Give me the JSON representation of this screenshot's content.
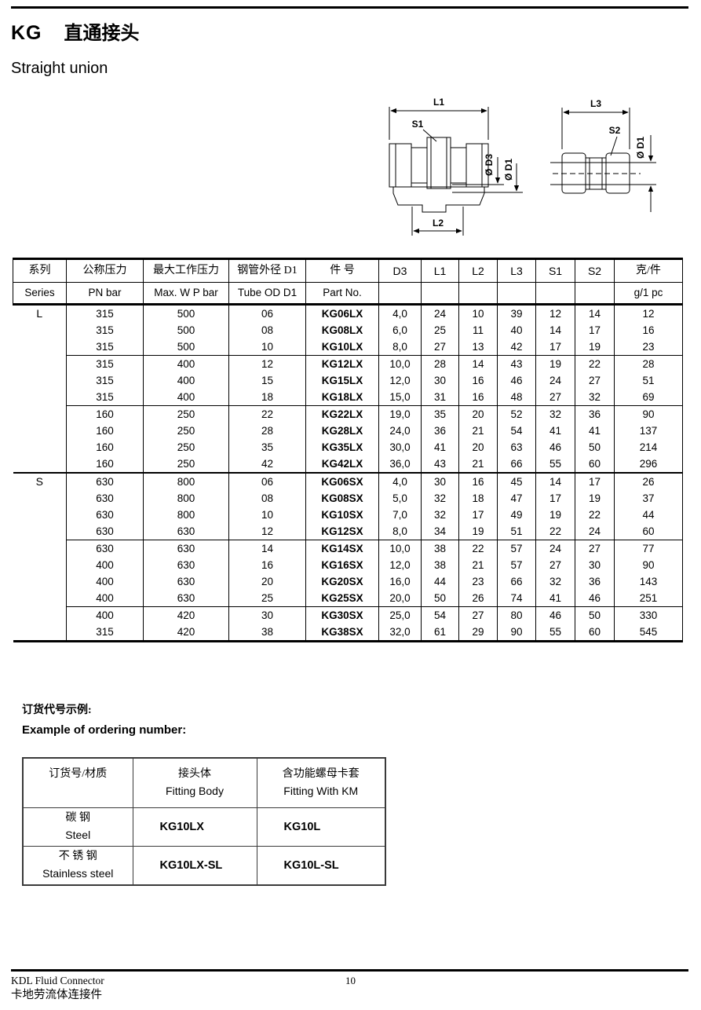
{
  "page": {
    "title_code": "KG",
    "title_zh": "直通接头",
    "subtitle": "Straight union",
    "page_number": "10",
    "footer_line1": "KDL Fluid Connector",
    "footer_line2": "卡地劳流体连接件"
  },
  "diagram": {
    "left": {
      "l1": "L1",
      "s1": "S1",
      "l2": "L2",
      "d3": "Ø D3",
      "d1": "Ø D1"
    },
    "right": {
      "l3": "L3",
      "s2": "S2",
      "d1": "Ø D1"
    }
  },
  "main_table": {
    "headers_zh": [
      "系列",
      "公称压力",
      "最大工作压力",
      "钢管外径 D1",
      "件 号",
      "D3",
      "L1",
      "L2",
      "L3",
      "S1",
      "S2",
      "克/件"
    ],
    "headers_en": [
      "Series",
      "PN bar",
      "Max. W P bar",
      "Tube OD D1",
      "Part No.",
      "",
      "",
      "",
      "",
      "",
      "",
      "g/1 pc"
    ],
    "sections": [
      {
        "series": "L",
        "groups": [
          [
            [
              "315",
              "500",
              "06",
              "KG06LX",
              "4,0",
              "24",
              "10",
              "39",
              "12",
              "14",
              "12"
            ],
            [
              "315",
              "500",
              "08",
              "KG08LX",
              "6,0",
              "25",
              "11",
              "40",
              "14",
              "17",
              "16"
            ],
            [
              "315",
              "500",
              "10",
              "KG10LX",
              "8,0",
              "27",
              "13",
              "42",
              "17",
              "19",
              "23"
            ]
          ],
          [
            [
              "315",
              "400",
              "12",
              "KG12LX",
              "10,0",
              "28",
              "14",
              "43",
              "19",
              "22",
              "28"
            ],
            [
              "315",
              "400",
              "15",
              "KG15LX",
              "12,0",
              "30",
              "16",
              "46",
              "24",
              "27",
              "51"
            ],
            [
              "315",
              "400",
              "18",
              "KG18LX",
              "15,0",
              "31",
              "16",
              "48",
              "27",
              "32",
              "69"
            ]
          ],
          [
            [
              "160",
              "250",
              "22",
              "KG22LX",
              "19,0",
              "35",
              "20",
              "52",
              "32",
              "36",
              "90"
            ],
            [
              "160",
              "250",
              "28",
              "KG28LX",
              "24,0",
              "36",
              "21",
              "54",
              "41",
              "41",
              "137"
            ],
            [
              "160",
              "250",
              "35",
              "KG35LX",
              "30,0",
              "41",
              "20",
              "63",
              "46",
              "50",
              "214"
            ],
            [
              "160",
              "250",
              "42",
              "KG42LX",
              "36,0",
              "43",
              "21",
              "66",
              "55",
              "60",
              "296"
            ]
          ]
        ]
      },
      {
        "series": "S",
        "groups": [
          [
            [
              "630",
              "800",
              "06",
              "KG06SX",
              "4,0",
              "30",
              "16",
              "45",
              "14",
              "17",
              "26"
            ],
            [
              "630",
              "800",
              "08",
              "KG08SX",
              "5,0",
              "32",
              "18",
              "47",
              "17",
              "19",
              "37"
            ],
            [
              "630",
              "800",
              "10",
              "KG10SX",
              "7,0",
              "32",
              "17",
              "49",
              "19",
              "22",
              "44"
            ],
            [
              "630",
              "630",
              "12",
              "KG12SX",
              "8,0",
              "34",
              "19",
              "51",
              "22",
              "24",
              "60"
            ]
          ],
          [
            [
              "630",
              "630",
              "14",
              "KG14SX",
              "10,0",
              "38",
              "22",
              "57",
              "24",
              "27",
              "77"
            ],
            [
              "400",
              "630",
              "16",
              "KG16SX",
              "12,0",
              "38",
              "21",
              "57",
              "27",
              "30",
              "90"
            ],
            [
              "400",
              "630",
              "20",
              "KG20SX",
              "16,0",
              "44",
              "23",
              "66",
              "32",
              "36",
              "143"
            ],
            [
              "400",
              "630",
              "25",
              "KG25SX",
              "20,0",
              "50",
              "26",
              "74",
              "41",
              "46",
              "251"
            ]
          ],
          [
            [
              "400",
              "420",
              "30",
              "KG30SX",
              "25,0",
              "54",
              "27",
              "80",
              "46",
              "50",
              "330"
            ],
            [
              "315",
              "420",
              "38",
              "KG38SX",
              "32,0",
              "61",
              "29",
              "90",
              "55",
              "60",
              "545"
            ]
          ]
        ]
      }
    ]
  },
  "ordering": {
    "heading_zh": "订货代号示例:",
    "heading_en": "Example of ordering number:",
    "table": {
      "col1_header": "订货号/材质",
      "col2_header_zh": "接头体",
      "col2_header_en": "Fitting Body",
      "col3_header_zh": "含功能螺母卡套",
      "col3_header_en": "Fitting With KM",
      "rows": [
        {
          "material_zh": "碳 钢",
          "material_en": "Steel",
          "body": "KG10LX",
          "with_km": "KG10L"
        },
        {
          "material_zh": "不 锈 钢",
          "material_en": "Stainless steel",
          "body": "KG10LX-SL",
          "with_km": "KG10L-SL"
        }
      ]
    }
  }
}
